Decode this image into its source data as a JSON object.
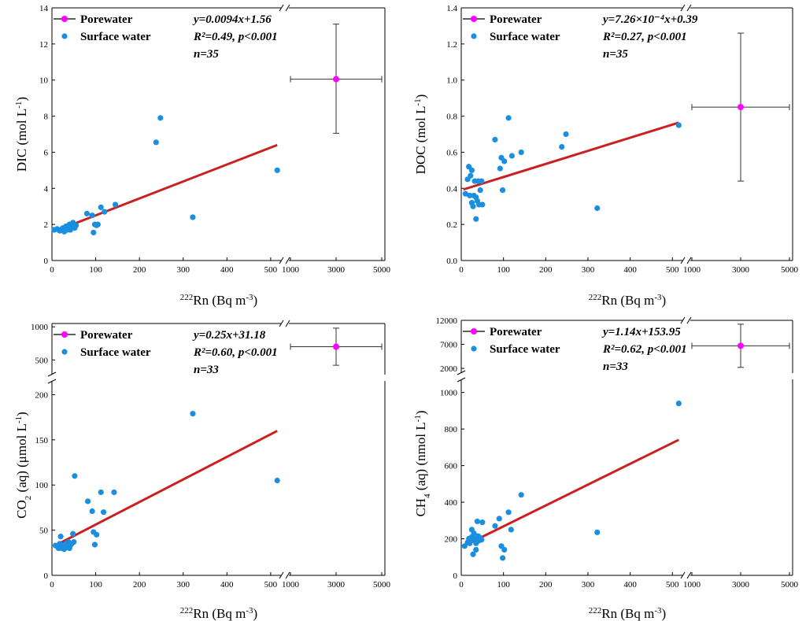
{
  "colors": {
    "porewater": "#ff00ff",
    "surface": "#1a8fdf",
    "fit": "#cc2020",
    "errorbar": "#333333"
  },
  "chart_data": [
    {
      "id": "DIC",
      "type": "scatter",
      "ylabel": {
        "main": "DIC (mol L",
        "sup": "-1",
        "tail": ")"
      },
      "xlabel": {
        "sup": "222",
        "main": "Rn (Bq m",
        "sup2": "-3",
        "tail": ")"
      },
      "xticks_low": [
        "0",
        "100",
        "200",
        "300",
        "400",
        "500"
      ],
      "xticks_high": [
        "1000",
        "3000",
        "5000"
      ],
      "xlim_low": [
        0,
        520
      ],
      "xlim_high": [
        1000,
        5000
      ],
      "ylim": [
        0,
        14
      ],
      "yticks": [
        "0",
        "2",
        "4",
        "6",
        "8",
        "10",
        "12",
        "14"
      ],
      "legend": [
        "Porewater",
        "Surface water"
      ],
      "stats": [
        "y=0.0094x+1.56",
        "R²=0.49, p<0.001",
        "n=35"
      ],
      "fit": {
        "slope": 0.0094,
        "intercept": 1.56,
        "x_start": 5,
        "x_end": 515
      },
      "surface_water": [
        [
          5,
          1.7
        ],
        [
          12,
          1.75
        ],
        [
          18,
          1.65
        ],
        [
          20,
          1.7
        ],
        [
          25,
          1.8
        ],
        [
          28,
          1.6
        ],
        [
          30,
          1.75
        ],
        [
          32,
          1.9
        ],
        [
          35,
          1.7
        ],
        [
          38,
          1.8
        ],
        [
          40,
          2.0
        ],
        [
          42,
          1.7
        ],
        [
          45,
          1.85
        ],
        [
          48,
          2.1
        ],
        [
          50,
          1.9
        ],
        [
          52,
          1.8
        ],
        [
          55,
          1.95
        ],
        [
          80,
          2.6
        ],
        [
          92,
          2.5
        ],
        [
          95,
          1.55
        ],
        [
          98,
          2.0
        ],
        [
          102,
          1.95
        ],
        [
          105,
          2.0
        ],
        [
          112,
          2.95
        ],
        [
          120,
          2.7
        ],
        [
          145,
          3.1
        ],
        [
          238,
          6.55
        ],
        [
          248,
          7.9
        ],
        [
          322,
          2.4
        ],
        [
          515,
          5.0
        ]
      ],
      "porewater": {
        "x": 3000,
        "y": 10.05,
        "x_err": [
          1000,
          5000
        ],
        "y_err": [
          7.05,
          13.1
        ]
      }
    },
    {
      "id": "DOC",
      "type": "scatter",
      "ylabel": {
        "main": "DOC (mol L",
        "sup": "-1",
        "tail": ")"
      },
      "xlabel": {
        "sup": "222",
        "main": "Rn (Bq m",
        "sup2": "-3",
        "tail": ")"
      },
      "xticks_low": [
        "0",
        "100",
        "200",
        "300",
        "400",
        "500"
      ],
      "xticks_high": [
        "1000",
        "3000",
        "5000"
      ],
      "xlim_low": [
        0,
        520
      ],
      "xlim_high": [
        1000,
        5000
      ],
      "ylim": [
        0,
        1.4
      ],
      "yticks": [
        "0.0",
        "0.2",
        "0.4",
        "0.6",
        "0.8",
        "1.0",
        "1.2",
        "1.4"
      ],
      "legend": [
        "Porewater",
        "Surface water"
      ],
      "stats": [
        "y=7.26×10⁻⁴x+0.39",
        "R²=0.27, p<0.001",
        "n=35"
      ],
      "fit": {
        "slope": 0.000726,
        "intercept": 0.39,
        "x_start": 5,
        "x_end": 515
      },
      "surface_water": [
        [
          10,
          0.37
        ],
        [
          15,
          0.45
        ],
        [
          18,
          0.52
        ],
        [
          20,
          0.36
        ],
        [
          22,
          0.47
        ],
        [
          25,
          0.32
        ],
        [
          25,
          0.5
        ],
        [
          28,
          0.3
        ],
        [
          30,
          0.36
        ],
        [
          32,
          0.44
        ],
        [
          35,
          0.23
        ],
        [
          35,
          0.35
        ],
        [
          38,
          0.33
        ],
        [
          40,
          0.44
        ],
        [
          42,
          0.31
        ],
        [
          45,
          0.39
        ],
        [
          48,
          0.44
        ],
        [
          50,
          0.31
        ],
        [
          80,
          0.67
        ],
        [
          92,
          0.51
        ],
        [
          95,
          0.57
        ],
        [
          98,
          0.39
        ],
        [
          102,
          0.55
        ],
        [
          112,
          0.79
        ],
        [
          120,
          0.58
        ],
        [
          142,
          0.6
        ],
        [
          238,
          0.63
        ],
        [
          248,
          0.7
        ],
        [
          322,
          0.29
        ],
        [
          515,
          0.75
        ]
      ],
      "porewater": {
        "x": 3000,
        "y": 0.85,
        "x_err": [
          1000,
          5000
        ],
        "y_err": [
          0.44,
          1.26
        ]
      }
    },
    {
      "id": "CO2",
      "type": "scatter",
      "ylabel": {
        "pre": "CO",
        "sub": "2",
        "main": " (aq) (μmol L",
        "sup": "-1",
        "tail": ")"
      },
      "xlabel": {
        "sup": "222",
        "main": "Rn (Bq m",
        "sup2": "-3",
        "tail": ")"
      },
      "xticks_low": [
        "0",
        "100",
        "200",
        "300",
        "400",
        "500"
      ],
      "xticks_high": [
        "1000",
        "3000",
        "5000"
      ],
      "xlim_low": [
        0,
        520
      ],
      "xlim_high": [
        1000,
        5000
      ],
      "ylim": [
        0,
        210
      ],
      "yticks": [
        "0",
        "50",
        "100",
        "150",
        "200"
      ],
      "ylim_top": [
        350,
        1050
      ],
      "yticks_top": [
        "500",
        "1000"
      ],
      "legend": [
        "Porewater",
        "Surface water"
      ],
      "stats": [
        "y=0.25x+31.18",
        "R²=0.60, p<0.001",
        "n=33"
      ],
      "fit": {
        "slope": 0.25,
        "intercept": 31.18,
        "x_start": 5,
        "x_end": 515
      },
      "surface_water": [
        [
          8,
          33
        ],
        [
          15,
          30
        ],
        [
          18,
          35
        ],
        [
          20,
          43
        ],
        [
          22,
          30
        ],
        [
          25,
          32
        ],
        [
          28,
          29
        ],
        [
          30,
          34
        ],
        [
          32,
          35
        ],
        [
          35,
          31
        ],
        [
          38,
          37
        ],
        [
          40,
          30
        ],
        [
          42,
          33
        ],
        [
          45,
          35
        ],
        [
          48,
          46
        ],
        [
          50,
          37
        ],
        [
          52,
          110
        ],
        [
          82,
          82
        ],
        [
          92,
          71
        ],
        [
          95,
          48
        ],
        [
          98,
          34
        ],
        [
          102,
          45
        ],
        [
          112,
          92
        ],
        [
          118,
          70
        ],
        [
          142,
          92
        ],
        [
          322,
          179
        ],
        [
          515,
          105
        ]
      ],
      "porewater": {
        "x": 3000,
        "y": 700,
        "x_err": [
          1000,
          5000
        ],
        "y_err": [
          420,
          980
        ]
      }
    },
    {
      "id": "CH4",
      "type": "scatter",
      "ylabel": {
        "pre": "CH",
        "sub": "4",
        "main": " (aq) (nmol L",
        "sup": "-1",
        "tail": ")"
      },
      "xlabel": {
        "sup": "222",
        "main": "Rn (Bq m",
        "sup2": "-3",
        "tail": ")"
      },
      "xticks_low": [
        "0",
        "100",
        "200",
        "300",
        "400",
        "500"
      ],
      "xticks_high": [
        "1000",
        "3000",
        "5000"
      ],
      "xlim_low": [
        0,
        520
      ],
      "xlim_high": [
        1000,
        5000
      ],
      "ylim": [
        0,
        1050
      ],
      "yticks": [
        "0",
        "200",
        "400",
        "600",
        "800",
        "1000"
      ],
      "ylim_top": [
        2000,
        12000
      ],
      "yticks_top": [
        "2000",
        "7000",
        "12000"
      ],
      "legend": [
        "Porewater",
        "Surface water"
      ],
      "stats": [
        "y=1.14x+153.95",
        "R²=0.62, p<0.001",
        "n=33"
      ],
      "fit": {
        "slope": 1.14,
        "intercept": 153.95,
        "x_start": 5,
        "x_end": 515
      },
      "surface_water": [
        [
          8,
          160
        ],
        [
          15,
          180
        ],
        [
          18,
          200
        ],
        [
          20,
          175
        ],
        [
          22,
          190
        ],
        [
          25,
          210
        ],
        [
          25,
          250
        ],
        [
          28,
          115
        ],
        [
          30,
          230
        ],
        [
          32,
          200
        ],
        [
          35,
          140
        ],
        [
          35,
          175
        ],
        [
          38,
          295
        ],
        [
          40,
          215
        ],
        [
          42,
          190
        ],
        [
          45,
          205
        ],
        [
          48,
          195
        ],
        [
          50,
          290
        ],
        [
          80,
          270
        ],
        [
          90,
          310
        ],
        [
          95,
          160
        ],
        [
          98,
          95
        ],
        [
          102,
          140
        ],
        [
          112,
          345
        ],
        [
          118,
          250
        ],
        [
          142,
          440
        ],
        [
          322,
          235
        ],
        [
          515,
          940
        ]
      ],
      "porewater": {
        "x": 3000,
        "y": 6700,
        "x_err": [
          1000,
          5000
        ],
        "y_err": [
          2200,
          11200
        ]
      }
    }
  ]
}
